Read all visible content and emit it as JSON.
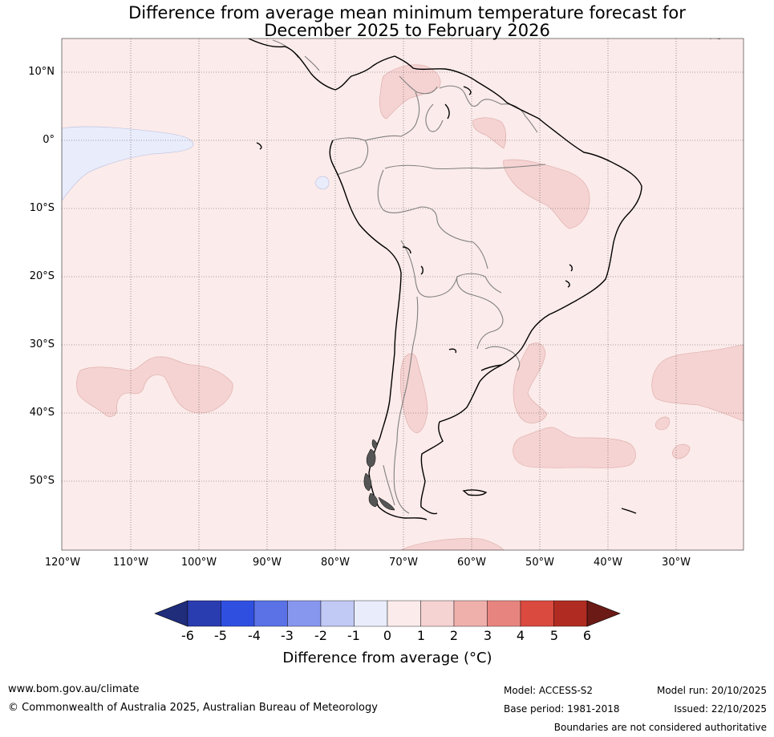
{
  "title_line1": "Difference from average mean minimum temperature forecast for",
  "title_line2": "December 2025 to February 2026",
  "latitude_labels": [
    "10°N",
    "0°",
    "10°S",
    "20°S",
    "30°S",
    "40°S",
    "50°S"
  ],
  "longitude_labels": [
    "120°W",
    "110°W",
    "100°W",
    "90°W",
    "80°W",
    "70°W",
    "60°W",
    "50°W",
    "40°W",
    "30°W"
  ],
  "colorbar": {
    "ticks": [
      "-6",
      "-5",
      "-4",
      "-3",
      "-2",
      "-1",
      "0",
      "1",
      "2",
      "3",
      "4",
      "5",
      "6"
    ],
    "colors": [
      "#1f2d7b",
      "#2a3db0",
      "#2f4fe0",
      "#5a72e6",
      "#8797ee",
      "#c1c9f5",
      "#e9ecfa",
      "#fbebea",
      "#f5d3d2",
      "#efb0ac",
      "#e8847f",
      "#db4a3f",
      "#b02c22",
      "#6b1a16"
    ],
    "label": "Difference from average (°C)"
  },
  "footer": {
    "website": "www.bom.gov.au/climate",
    "copyright": "© Commonwealth of Australia 2025, Australian Bureau of Meteorology",
    "model": "Model: ACCESS-S2",
    "base_period": "Base period: 1981-2018",
    "model_run": "Model run: 20/10/2025",
    "issued": "Issued: 22/10/2025",
    "disclaimer": "Boundaries are not considered authoritative"
  }
}
